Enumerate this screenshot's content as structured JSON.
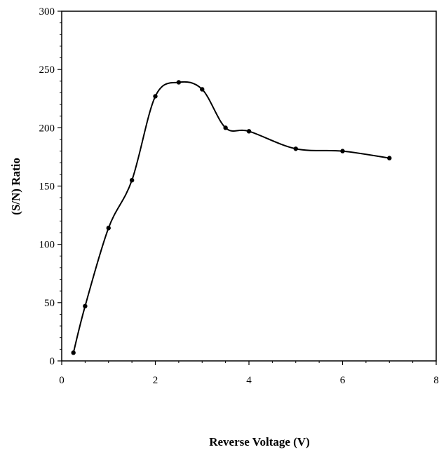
{
  "chart_data": {
    "type": "line",
    "title": "",
    "xlabel": "Reverse Voltage (V)",
    "ylabel": "(S/N) Ratio",
    "xlim": [
      0,
      8
    ],
    "ylim": [
      0,
      300
    ],
    "x_ticks": [
      0,
      2,
      4,
      6,
      8
    ],
    "y_ticks": [
      0,
      50,
      100,
      150,
      200,
      250,
      300
    ],
    "x_tick_labels": [
      "0",
      "2",
      "4",
      "6",
      "8"
    ],
    "y_tick_labels": [
      "0",
      "50",
      "100",
      "150",
      "200",
      "250",
      "300"
    ],
    "grid": false,
    "legend": "none",
    "line_color": "#000000",
    "smooth": true,
    "series": [
      {
        "x": [
          0.25,
          0.5,
          1.0,
          1.5,
          2.0,
          2.5,
          3.0,
          3.5,
          4.0,
          5.0,
          6.0,
          7.0
        ],
        "y": [
          7,
          47,
          114,
          155,
          227,
          239,
          233,
          200,
          197,
          182,
          180,
          174
        ]
      }
    ]
  }
}
